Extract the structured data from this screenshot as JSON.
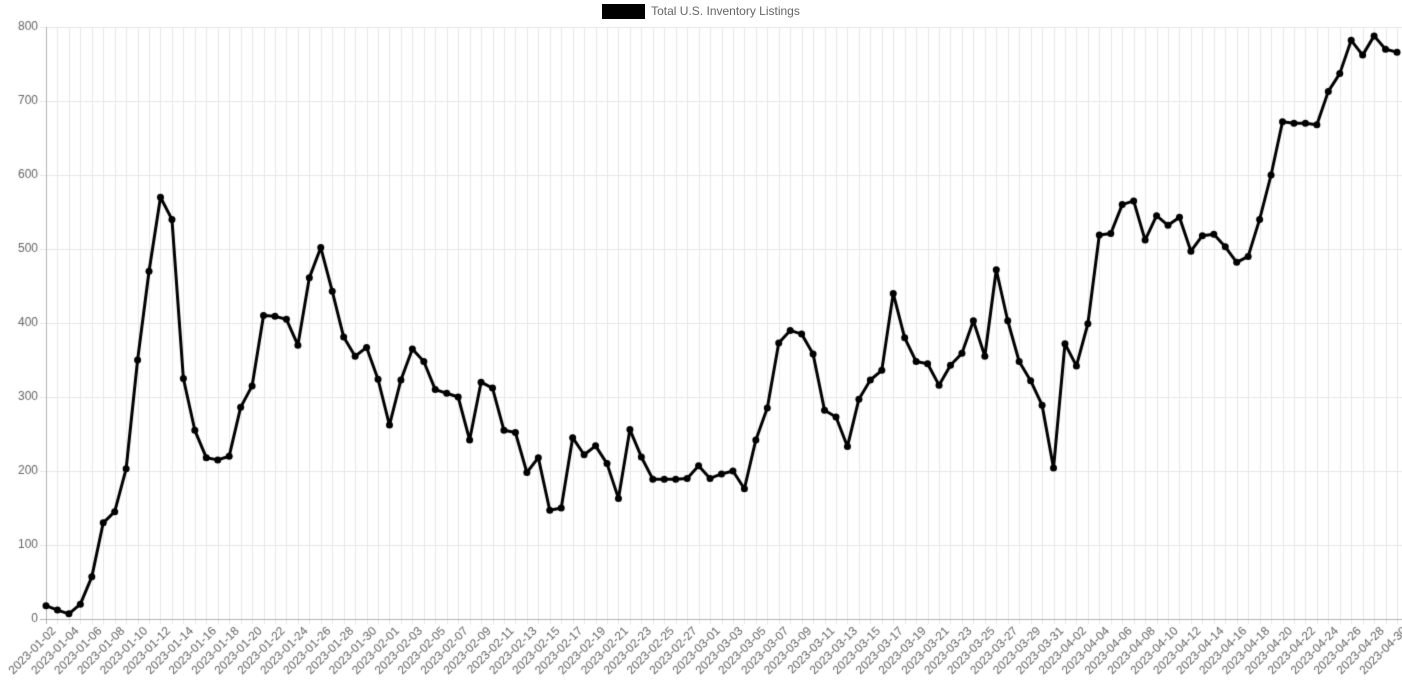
{
  "chart_data": {
    "type": "line",
    "title": "",
    "legend": {
      "position": "top",
      "label": "Total U.S. Inventory Listings",
      "swatch_color": "#000000"
    },
    "xlabel": "",
    "ylabel": "",
    "ylim": [
      0,
      800
    ],
    "y_ticks": [
      0,
      100,
      200,
      300,
      400,
      500,
      600,
      700,
      800
    ],
    "x_label_every": 2,
    "x_label_rotation_deg": -45,
    "grid": true,
    "colors": {
      "grid": "#e7e7e7",
      "axis_line": "#b3b3b3",
      "tick_text": "#666666",
      "background": "#ffffff",
      "line": "#000000"
    },
    "x": [
      "2023-01-02",
      "2023-01-03",
      "2023-01-04",
      "2023-01-05",
      "2023-01-06",
      "2023-01-07",
      "2023-01-08",
      "2023-01-09",
      "2023-01-10",
      "2023-01-11",
      "2023-01-12",
      "2023-01-13",
      "2023-01-14",
      "2023-01-15",
      "2023-01-16",
      "2023-01-17",
      "2023-01-18",
      "2023-01-19",
      "2023-01-20",
      "2023-01-21",
      "2023-01-22",
      "2023-01-23",
      "2023-01-24",
      "2023-01-25",
      "2023-01-26",
      "2023-01-27",
      "2023-01-28",
      "2023-01-29",
      "2023-01-30",
      "2023-01-31",
      "2023-02-01",
      "2023-02-02",
      "2023-02-03",
      "2023-02-04",
      "2023-02-05",
      "2023-02-06",
      "2023-02-07",
      "2023-02-08",
      "2023-02-09",
      "2023-02-10",
      "2023-02-11",
      "2023-02-12",
      "2023-02-13",
      "2023-02-14",
      "2023-02-15",
      "2023-02-16",
      "2023-02-17",
      "2023-02-18",
      "2023-02-19",
      "2023-02-20",
      "2023-02-21",
      "2023-02-22",
      "2023-02-23",
      "2023-02-24",
      "2023-02-25",
      "2023-02-26",
      "2023-02-27",
      "2023-02-28",
      "2023-03-01",
      "2023-03-02",
      "2023-03-03",
      "2023-03-04",
      "2023-03-05",
      "2023-03-06",
      "2023-03-07",
      "2023-03-08",
      "2023-03-09",
      "2023-03-10",
      "2023-03-11",
      "2023-03-12",
      "2023-03-13",
      "2023-03-14",
      "2023-03-15",
      "2023-03-16",
      "2023-03-17",
      "2023-03-18",
      "2023-03-19",
      "2023-03-20",
      "2023-03-21",
      "2023-03-22",
      "2023-03-23",
      "2023-03-24",
      "2023-03-25",
      "2023-03-26",
      "2023-03-27",
      "2023-03-28",
      "2023-03-29",
      "2023-03-30",
      "2023-03-31",
      "2023-04-01",
      "2023-04-02",
      "2023-04-03",
      "2023-04-04",
      "2023-04-05",
      "2023-04-06",
      "2023-04-07",
      "2023-04-08",
      "2023-04-09",
      "2023-04-10",
      "2023-04-11",
      "2023-04-12",
      "2023-04-13",
      "2023-04-14",
      "2023-04-15",
      "2023-04-16",
      "2023-04-17",
      "2023-04-18",
      "2023-04-19",
      "2023-04-20",
      "2023-04-21",
      "2023-04-22",
      "2023-04-23",
      "2023-04-24",
      "2023-04-25",
      "2023-04-26",
      "2023-04-27",
      "2023-04-28",
      "2023-04-29",
      "2023-04-30"
    ],
    "series": [
      {
        "name": "Total U.S. Inventory Listings",
        "color": "#000000",
        "line_width": 3,
        "point_radius": 3.5,
        "values": [
          18,
          12,
          7,
          20,
          57,
          130,
          145,
          203,
          350,
          470,
          570,
          540,
          325,
          255,
          218,
          215,
          220,
          286,
          315,
          410,
          409,
          405,
          370,
          461,
          502,
          443,
          381,
          355,
          367,
          324,
          262,
          323,
          365,
          348,
          310,
          305,
          300,
          242,
          320,
          312,
          255,
          252,
          198,
          218,
          147,
          150,
          245,
          222,
          234,
          210,
          163,
          256,
          219,
          189,
          189,
          189,
          190,
          207,
          190,
          196,
          200,
          176,
          242,
          285,
          373,
          390,
          385,
          358,
          282,
          273,
          233,
          297,
          323,
          336,
          440,
          380,
          348,
          345,
          316,
          343,
          359,
          403,
          355,
          472,
          403,
          348,
          322,
          289,
          204,
          372,
          342,
          399,
          519,
          521,
          560,
          565,
          512,
          545,
          532,
          543,
          497,
          518,
          520,
          503,
          482,
          490,
          540,
          600,
          672,
          670,
          670,
          668,
          713,
          737,
          782,
          762,
          788,
          770,
          766
        ]
      }
    ]
  }
}
